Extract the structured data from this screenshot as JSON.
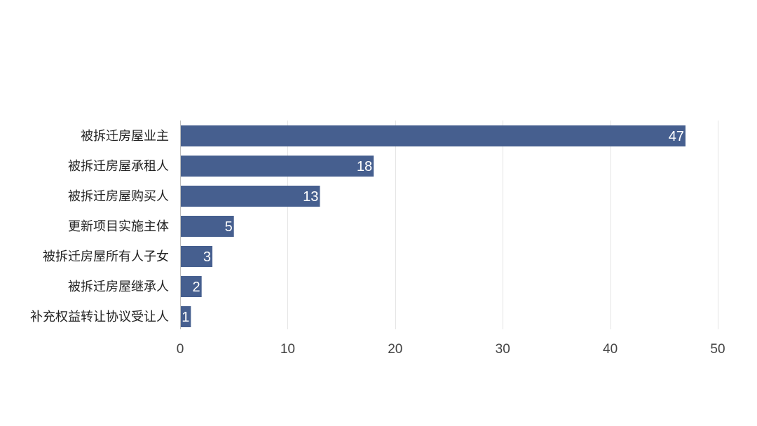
{
  "chart_data": {
    "type": "bar",
    "orientation": "horizontal",
    "categories": [
      "被拆迁房屋业主",
      "被拆迁房屋承租人",
      "被拆迁房屋购买人",
      "更新项目实施主体",
      "被拆迁房屋所有人子女",
      "被拆迁房屋继承人",
      "补充权益转让协议受让人"
    ],
    "values": [
      47,
      18,
      13,
      5,
      3,
      2,
      1
    ],
    "value_labels": [
      "47",
      "18",
      "13",
      "5",
      "3",
      "2",
      "1"
    ],
    "xlim": [
      0,
      50
    ],
    "x_ticks": [
      0,
      10,
      20,
      30,
      40,
      50
    ],
    "x_tick_labels": [
      "0",
      "10",
      "20",
      "30",
      "40",
      "50"
    ],
    "grid": true,
    "legend": "none",
    "colors": {
      "bar": "#465f8f",
      "grid": "#e3e3e3",
      "axis": "#bdbdbd"
    }
  }
}
